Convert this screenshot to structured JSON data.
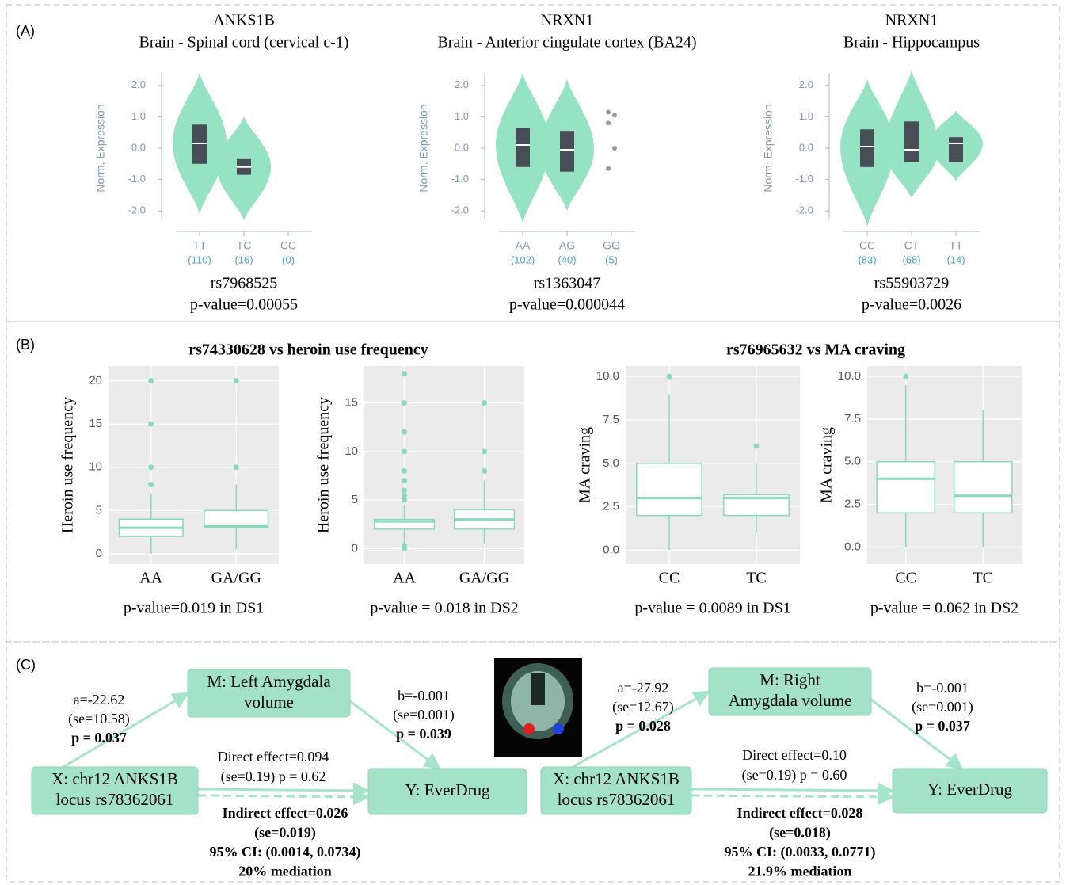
{
  "panel_labels": [
    "(A)",
    "(B)",
    "(C)"
  ],
  "chart_data": [
    {
      "type": "violin",
      "title": "ANKS1B",
      "subtitle": "Brain - Spinal cord (cervical c-1)",
      "ylabel": "Norm. Expression",
      "ylim": [
        -2.5,
        2.5
      ],
      "yticks": [
        {
          "value": -2,
          "label": "-2.0"
        },
        {
          "value": -1,
          "label": "-1.0"
        },
        {
          "value": 0,
          "label": "0.0"
        },
        {
          "value": 1,
          "label": "1.0"
        },
        {
          "value": 2,
          "label": "2.0"
        }
      ],
      "categories": [
        "TT",
        "TC",
        "CC"
      ],
      "counts": [
        "(110)",
        "(16)",
        "(0)"
      ],
      "color": "#96e3c4",
      "violins": [
        {
          "min": -2.1,
          "max": 2.4,
          "q1": -0.5,
          "median": 0.15,
          "q3": 0.75
        },
        {
          "min": -2.3,
          "max": 1.0,
          "q1": -0.85,
          "median": -0.6,
          "q3": -0.35
        },
        null
      ],
      "points": [
        [],
        [],
        []
      ],
      "snp": "rs7968525",
      "pvalue": "p-value=0.00055"
    },
    {
      "type": "violin",
      "title": "NRXN1",
      "subtitle": "Brain - Anterior cingulate cortex (BA24)",
      "ylabel": "Norm. Expression",
      "ylim": [
        -2.5,
        2.5
      ],
      "yticks": [
        {
          "value": -2,
          "label": "-2.0"
        },
        {
          "value": -1,
          "label": "-1.0"
        },
        {
          "value": 0,
          "label": "0.0"
        },
        {
          "value": 1,
          "label": "1.0"
        },
        {
          "value": 2,
          "label": "2.0"
        }
      ],
      "categories": [
        "AA",
        "AG",
        "GG"
      ],
      "counts": [
        "(102)",
        "(40)",
        "(5)"
      ],
      "color": "#96e3c4",
      "violins": [
        {
          "min": -2.4,
          "max": 2.4,
          "q1": -0.6,
          "median": 0.1,
          "q3": 0.65
        },
        {
          "min": -2.0,
          "max": 2.2,
          "q1": -0.75,
          "median": -0.05,
          "q3": 0.55
        },
        null
      ],
      "points": [
        [],
        [],
        [
          1.15,
          1.05,
          0.8,
          0,
          -0.65
        ]
      ],
      "snp": "rs1363047",
      "pvalue": "p-value=0.000044"
    },
    {
      "type": "violin",
      "title": "NRXN1",
      "subtitle": "Brain - Hippocampus",
      "ylabel": "Norm. Expression",
      "ylim": [
        -2.5,
        2.5
      ],
      "yticks": [
        {
          "value": -2,
          "label": "-2.0"
        },
        {
          "value": -1,
          "label": "-1.0"
        },
        {
          "value": 0,
          "label": "0.0"
        },
        {
          "value": 1,
          "label": "1.0"
        },
        {
          "value": 2,
          "label": "2.0"
        }
      ],
      "categories": [
        "CC",
        "CT",
        "TT"
      ],
      "counts": [
        "(83)",
        "(68)",
        "(14)"
      ],
      "color": "#96e3c4",
      "violins": [
        {
          "min": -2.5,
          "max": 2.2,
          "q1": -0.6,
          "median": 0.05,
          "q3": 0.6
        },
        {
          "min": -1.6,
          "max": 2.5,
          "q1": -0.45,
          "median": -0.05,
          "q3": 0.85
        },
        {
          "min": -1.05,
          "max": 1.2,
          "q1": -0.45,
          "median": 0.15,
          "q3": 0.35
        }
      ],
      "points": [
        [],
        [],
        []
      ],
      "snp": "rs55903729",
      "pvalue": "p-value=0.0026"
    },
    {
      "type": "box",
      "title": "rs74330628 vs heroin use frequency",
      "ylabel": "Heroin use frequency",
      "ylim": [
        -1.2,
        21.7
      ],
      "yticks": [
        0,
        5,
        10,
        15,
        20
      ],
      "categories": [
        "AA",
        "GA/GG"
      ],
      "color": "#8ad9bb",
      "boxes": [
        {
          "low": 0,
          "q1": 2,
          "median": 3,
          "q3": 4,
          "high": 7,
          "outliers": [
            8,
            10,
            15,
            20
          ]
        },
        {
          "low": 0.5,
          "q1": 3,
          "median": 3.2,
          "q3": 5,
          "high": 8,
          "outliers": [
            10,
            20
          ]
        }
      ],
      "caption": "p-value=0.019 in DS1"
    },
    {
      "type": "box",
      "ylabel": "Heroin use frequency",
      "ylim": [
        -1.6,
        18.8
      ],
      "yticks": [
        0,
        5,
        10,
        15
      ],
      "categories": [
        "AA",
        "GA/GG"
      ],
      "color": "#8ad9bb",
      "boxes": [
        {
          "low": 0,
          "q1": 2,
          "median": 2.8,
          "q3": 3,
          "high": 4.5,
          "outliers": [
            0,
            0.3,
            5,
            5.5,
            6,
            7,
            8,
            10,
            12,
            15,
            18
          ]
        },
        {
          "low": 0.5,
          "q1": 2,
          "median": 3,
          "q3": 4,
          "high": 7,
          "outliers": [
            8,
            10,
            15
          ]
        }
      ],
      "caption": "p-value = 0.018 in DS2"
    },
    {
      "type": "box",
      "title": "rs76965632 vs MA craving",
      "ylabel": "MA craving",
      "ylim": [
        -0.8,
        10.6
      ],
      "yticks": [
        {
          "value": 0,
          "label": "0.0"
        },
        {
          "value": 2.5,
          "label": "2.5"
        },
        {
          "value": 5,
          "label": "5.0"
        },
        {
          "value": 7.5,
          "label": "7.5"
        },
        {
          "value": 10,
          "label": "10.0"
        }
      ],
      "categories": [
        "CC",
        "TC"
      ],
      "color": "#8ad9bb",
      "boxes": [
        {
          "low": 0,
          "q1": 2,
          "median": 3,
          "q3": 5,
          "high": 9,
          "outliers": [
            10
          ]
        },
        {
          "low": 1,
          "q1": 2,
          "median": 3,
          "q3": 3.2,
          "high": 5,
          "outliers": [
            6
          ]
        }
      ],
      "caption": "p-value = 0.0089 in DS1"
    },
    {
      "type": "box",
      "ylabel": "MA craving",
      "ylim": [
        -1.0,
        10.6
      ],
      "yticks": [
        {
          "value": 0,
          "label": "0.0"
        },
        {
          "value": 2.5,
          "label": "2.5"
        },
        {
          "value": 5,
          "label": "5.0"
        },
        {
          "value": 7.5,
          "label": "7.5"
        },
        {
          "value": 10,
          "label": "10.0"
        }
      ],
      "categories": [
        "CC",
        "TC"
      ],
      "color": "#8ad9bb",
      "boxes": [
        {
          "low": 0,
          "q1": 2,
          "median": 4,
          "q3": 5,
          "high": 9.5,
          "outliers": [
            10
          ]
        },
        {
          "low": 0,
          "q1": 2,
          "median": 3,
          "q3": 5,
          "high": 8,
          "outliers": []
        }
      ],
      "caption": "p-value = 0.062 in DS2"
    }
  ],
  "diagrams": [
    {
      "x": [
        "X: chr12 ANKS1B",
        "locus rs78362061"
      ],
      "m": [
        "M: Left Amygdala",
        "volume"
      ],
      "y": [
        "Y: EverDrug"
      ],
      "a": [
        "a=-22.62",
        "(se=10.58)",
        "p = 0.037"
      ],
      "b": [
        "b=-0.001",
        "(se=0.001)",
        "p = 0.039"
      ],
      "direct": [
        "Direct effect=0.094",
        "(se=0.19) p = 0.62"
      ],
      "indirect": [
        "Indirect effect=0.026",
        "(se=0.019)",
        "95% CI: (0.0014, 0.0734)",
        "20% mediation"
      ]
    },
    {
      "x": [
        "X: chr12 ANKS1B",
        "locus rs78362061"
      ],
      "m": [
        "M: Right",
        "Amygdala volume"
      ],
      "y": [
        "Y: EverDrug"
      ],
      "a": [
        "a=-27.92",
        "(se=12.67)",
        "p = 0.028"
      ],
      "b": [
        "b=-0.001",
        "(se=0.001)",
        "p = 0.037"
      ],
      "direct": [
        "Direct effect=0.10",
        "(se=0.19) p = 0.60"
      ],
      "indirect": [
        "Indirect effect=0.028",
        "(se=0.018)",
        "95% CI: (0.0033, 0.0771)",
        "21.9% mediation"
      ]
    }
  ]
}
